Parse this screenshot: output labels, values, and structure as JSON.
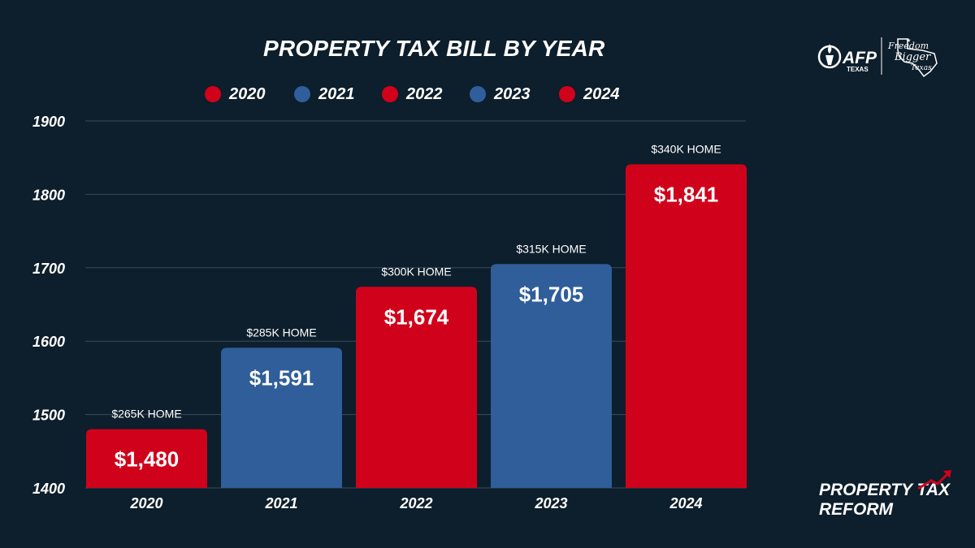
{
  "chart_data": {
    "type": "bar",
    "title": "PROPERTY TAX BILL BY YEAR",
    "categories": [
      "2020",
      "2021",
      "2022",
      "2023",
      "2024"
    ],
    "values": [
      1480,
      1591,
      1674,
      1705,
      1841
    ],
    "value_labels": [
      "$1,480",
      "$1,591",
      "$1,674",
      "$1,705",
      "$1,841"
    ],
    "annotations": [
      "$265K HOME",
      "$285K HOME",
      "$300K HOME",
      "$315K HOME",
      "$340K HOME"
    ],
    "bar_colors": [
      "#d0021b",
      "#2f5e9a",
      "#d0021b",
      "#2f5e9a",
      "#d0021b"
    ],
    "legend": [
      {
        "label": "2020",
        "color": "#d0021b"
      },
      {
        "label": "2021",
        "color": "#2f5e9a"
      },
      {
        "label": "2022",
        "color": "#d0021b"
      },
      {
        "label": "2023",
        "color": "#2f5e9a"
      },
      {
        "label": "2024",
        "color": "#d0021b"
      }
    ],
    "legend_position": "top",
    "ylim": [
      1400,
      1900
    ],
    "yticks": [
      "1400",
      "1500",
      "1600",
      "1700",
      "1800",
      "1900"
    ],
    "grid": true
  },
  "branding": {
    "afp_name": "AFP",
    "afp_state": "TEXAS",
    "slogan_line1": "Freedom",
    "slogan_line2": "Bigger",
    "slogan_line3": "Texas",
    "footer_line1": "PROPERTY TAX",
    "footer_line2": "REFORM"
  },
  "colors": {
    "background": "#0d1e2c",
    "red": "#d0021b",
    "blue": "#2f5e9a",
    "grid": "#3a4a5a"
  }
}
